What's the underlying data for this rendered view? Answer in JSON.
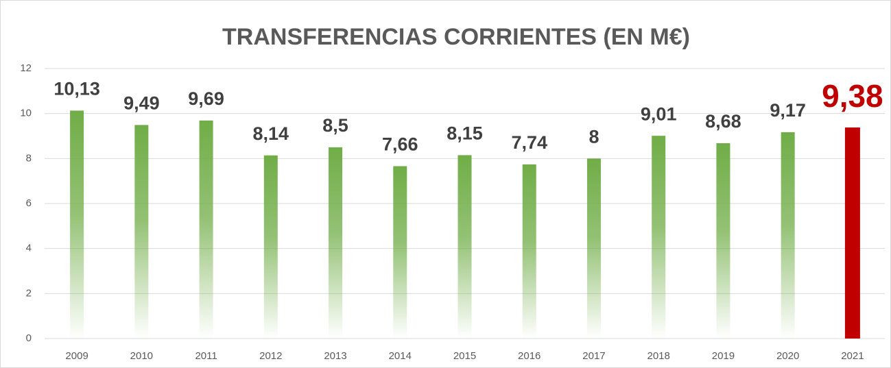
{
  "chart_data": {
    "type": "bar",
    "title": "TRANSFERENCIAS CORRIENTES (EN M€)",
    "categories": [
      "2009",
      "2010",
      "2011",
      "2012",
      "2013",
      "2014",
      "2015",
      "2016",
      "2017",
      "2018",
      "2019",
      "2020",
      "2021"
    ],
    "values": [
      10.13,
      9.49,
      9.69,
      8.14,
      8.5,
      7.66,
      8.15,
      7.74,
      8,
      9.01,
      8.68,
      9.17,
      9.38
    ],
    "value_labels": [
      "10,13",
      "9,49",
      "9,69",
      "8,14",
      "8,5",
      "7,66",
      "8,15",
      "7,74",
      "8",
      "9,01",
      "8,68",
      "9,17",
      "9,38"
    ],
    "colors": [
      "#70ad47",
      "#70ad47",
      "#70ad47",
      "#70ad47",
      "#70ad47",
      "#70ad47",
      "#70ad47",
      "#70ad47",
      "#70ad47",
      "#70ad47",
      "#70ad47",
      "#70ad47",
      "#c00000"
    ],
    "label_colors": [
      "#404040",
      "#404040",
      "#404040",
      "#404040",
      "#404040",
      "#404040",
      "#404040",
      "#404040",
      "#404040",
      "#404040",
      "#404040",
      "#404040",
      "#c00000"
    ],
    "ylim": [
      0,
      12
    ],
    "yticks": [
      0,
      2,
      4,
      6,
      8,
      10,
      12
    ],
    "grid": true
  }
}
